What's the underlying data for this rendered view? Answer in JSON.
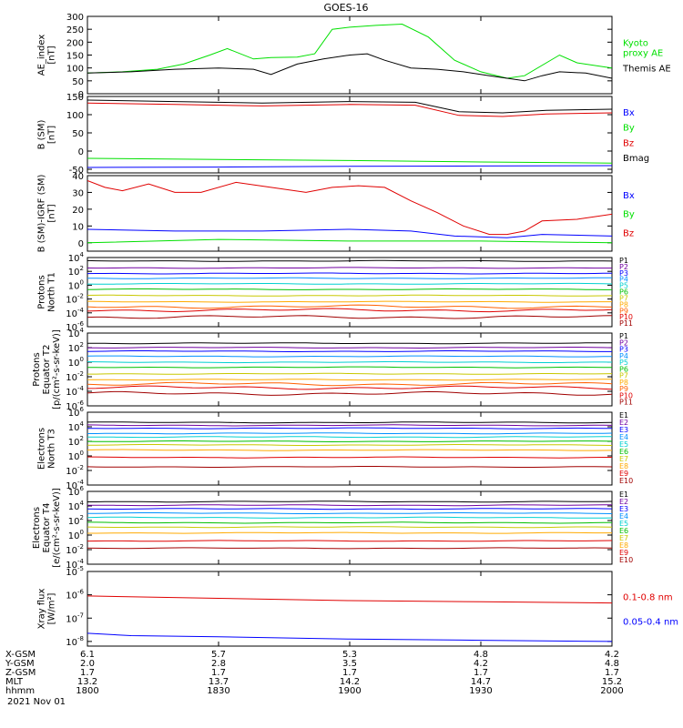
{
  "title": "GOES-16",
  "date": "2021 Nov 01",
  "chart_data": [
    {
      "type": "line",
      "ylabel": [
        "AE_index",
        "[nT]"
      ],
      "ylim": [
        0,
        300
      ],
      "yticks": [
        0,
        50,
        100,
        150,
        200,
        250,
        300
      ],
      "yticklabels": [
        "0",
        "50",
        "100",
        "150",
        "200",
        "250",
        "300"
      ],
      "series": [
        {
          "name": "Kyoto proxy AE",
          "label_lines": [
            "Kyoto",
            "proxy AE"
          ],
          "color": "#00e000",
          "x": [
            0,
            8,
            16,
            22,
            28,
            32,
            38,
            42,
            48,
            52,
            56,
            60,
            66,
            72,
            78,
            84,
            90,
            96,
            100,
            108,
            112,
            120
          ],
          "values": [
            80,
            85,
            95,
            115,
            150,
            175,
            135,
            140,
            142,
            155,
            250,
            258,
            265,
            270,
            220,
            130,
            85,
            60,
            70,
            150,
            120,
            100
          ]
        },
        {
          "name": "Themis AE",
          "label_lines": [
            "Themis AE"
          ],
          "color": "#000000",
          "x": [
            0,
            10,
            20,
            30,
            38,
            42,
            48,
            54,
            60,
            64,
            68,
            74,
            80,
            86,
            92,
            96,
            100,
            104,
            108,
            114,
            120
          ],
          "values": [
            80,
            85,
            95,
            100,
            95,
            75,
            115,
            135,
            150,
            155,
            130,
            100,
            95,
            85,
            70,
            60,
            50,
            70,
            85,
            80,
            60
          ]
        }
      ]
    },
    {
      "type": "line",
      "ylabel": [
        "B (SM)",
        "[nT]"
      ],
      "ylim": [
        -60,
        150
      ],
      "yticks": [
        -50,
        0,
        50,
        100,
        150
      ],
      "yticklabels": [
        "-50",
        "0",
        "50",
        "100",
        "150"
      ],
      "series": [
        {
          "name": "Bx",
          "color": "#0000ff",
          "x": [
            0,
            30,
            60,
            90,
            120
          ],
          "values": [
            -45,
            -44,
            -42,
            -41,
            -40
          ]
        },
        {
          "name": "By",
          "color": "#00e000",
          "x": [
            0,
            30,
            60,
            90,
            120
          ],
          "values": [
            -20,
            -23,
            -26,
            -30,
            -33
          ]
        },
        {
          "name": "Bz",
          "color": "#e00000",
          "x": [
            0,
            20,
            40,
            60,
            75,
            85,
            95,
            105,
            120
          ],
          "values": [
            132,
            128,
            124,
            128,
            126,
            98,
            95,
            102,
            105
          ]
        },
        {
          "name": "Bmag",
          "color": "#000000",
          "x": [
            0,
            20,
            40,
            60,
            75,
            85,
            95,
            105,
            120
          ],
          "values": [
            140,
            136,
            132,
            136,
            134,
            108,
            105,
            112,
            115
          ]
        }
      ]
    },
    {
      "type": "line",
      "ylabel": [
        "B (SM)-IGRF (SM)",
        "[nT]"
      ],
      "ylim": [
        -5,
        40
      ],
      "yticks": [
        0,
        10,
        20,
        30,
        40
      ],
      "yticklabels": [
        "0",
        "10",
        "20",
        "30",
        "40"
      ],
      "series": [
        {
          "name": "Bx",
          "color": "#0000ff",
          "x": [
            0,
            20,
            40,
            60,
            74,
            84,
            96,
            104,
            120
          ],
          "values": [
            8,
            7,
            7,
            8,
            7,
            4,
            3,
            5,
            4
          ]
        },
        {
          "name": "By",
          "color": "#00e000",
          "x": [
            0,
            30,
            60,
            90,
            120
          ],
          "values": [
            0,
            2,
            1,
            1,
            0
          ]
        },
        {
          "name": "Bz",
          "color": "#e00000",
          "x": [
            0,
            4,
            8,
            14,
            20,
            26,
            34,
            42,
            50,
            56,
            62,
            68,
            74,
            80,
            86,
            92,
            96,
            100,
            104,
            112,
            120
          ],
          "values": [
            37,
            33,
            31,
            35,
            30,
            30,
            36,
            33,
            30,
            33,
            34,
            33,
            25,
            18,
            10,
            5,
            5,
            7,
            13,
            14,
            17
          ]
        }
      ]
    },
    {
      "type": "line",
      "log": true,
      "ylabel": [
        "Protons",
        "North T1"
      ],
      "ylim_exp": [
        -6,
        4
      ],
      "tick_exps": [
        -6,
        -4,
        -2,
        0,
        2,
        4
      ],
      "series": [
        {
          "name": "P1",
          "color": "#000000",
          "exp": 3.5
        },
        {
          "name": "P2",
          "color": "#7000a0",
          "exp": 2.5
        },
        {
          "name": "P3",
          "color": "#0000ff",
          "exp": 1.7
        },
        {
          "name": "P4",
          "color": "#0090ff",
          "exp": 1.0
        },
        {
          "name": "P5",
          "color": "#00d0d0",
          "exp": 0.2
        },
        {
          "name": "P6",
          "color": "#00c000",
          "exp": -0.6
        },
        {
          "name": "P7",
          "color": "#c8c800",
          "exp": -1.5
        },
        {
          "name": "P8",
          "color": "#ffaa00",
          "exp": -2.4
        },
        {
          "name": "P9",
          "color": "#ff6000",
          "exp": -3.1
        },
        {
          "name": "P10",
          "color": "#e00000",
          "exp": -3.6
        },
        {
          "name": "P11",
          "color": "#a00000",
          "exp": -4.6
        }
      ]
    },
    {
      "type": "line",
      "log": true,
      "ylabel": [
        "Protons",
        "Equator T2",
        "[p/(cm²-s-sr-keV)]"
      ],
      "ylim_exp": [
        -6,
        4
      ],
      "tick_exps": [
        -6,
        -4,
        -2,
        0,
        2,
        4
      ],
      "series": [
        {
          "name": "P1",
          "color": "#000000",
          "exp": 2.6
        },
        {
          "name": "P2",
          "color": "#7000a0",
          "exp": 2.0
        },
        {
          "name": "P3",
          "color": "#0000ff",
          "exp": 1.5
        },
        {
          "name": "P4",
          "color": "#0090ff",
          "exp": 0.8
        },
        {
          "name": "P5",
          "color": "#00d0d0",
          "exp": 0.0
        },
        {
          "name": "P6",
          "color": "#00c000",
          "exp": -0.7
        },
        {
          "name": "P7",
          "color": "#c8c800",
          "exp": -1.6
        },
        {
          "name": "P8",
          "color": "#ffaa00",
          "exp": -2.4
        },
        {
          "name": "P9",
          "color": "#ff6000",
          "exp": -3.0
        },
        {
          "name": "P10",
          "color": "#e00000",
          "exp": -3.5
        },
        {
          "name": "P11",
          "color": "#a00000",
          "exp": -4.3
        }
      ]
    },
    {
      "type": "line",
      "log": true,
      "ylabel": [
        "Electrons",
        "North T3"
      ],
      "ylim_exp": [
        -4,
        6
      ],
      "tick_exps": [
        -4,
        -2,
        0,
        2,
        4,
        6
      ],
      "series": [
        {
          "name": "E1",
          "color": "#000000",
          "exp": 4.6
        },
        {
          "name": "E2",
          "color": "#7000a0",
          "exp": 4.2
        },
        {
          "name": "E3",
          "color": "#0000ff",
          "exp": 3.8
        },
        {
          "name": "E4",
          "color": "#0090ff",
          "exp": 3.1
        },
        {
          "name": "E5",
          "color": "#00d0d0",
          "exp": 2.6
        },
        {
          "name": "E6",
          "color": "#00c000",
          "exp": 2.0
        },
        {
          "name": "E7",
          "color": "#c8c800",
          "exp": 1.5
        },
        {
          "name": "E8",
          "color": "#ffaa00",
          "exp": 0.8
        },
        {
          "name": "E9",
          "color": "#e00000",
          "exp": -0.2
        },
        {
          "name": "E10",
          "color": "#a00000",
          "exp": -1.5
        }
      ]
    },
    {
      "type": "line",
      "log": true,
      "ylabel": [
        "Electrons",
        "Equator T4",
        "[e/(cm²-s-sr-keV)]"
      ],
      "ylim_exp": [
        -4,
        6
      ],
      "tick_exps": [
        -4,
        -2,
        0,
        2,
        4,
        6
      ],
      "series": [
        {
          "name": "E1",
          "color": "#000000",
          "exp": 4.6
        },
        {
          "name": "E2",
          "color": "#7000a0",
          "exp": 4.1
        },
        {
          "name": "E3",
          "color": "#0000ff",
          "exp": 3.6
        },
        {
          "name": "E4",
          "color": "#0090ff",
          "exp": 3.0
        },
        {
          "name": "E5",
          "color": "#00d0d0",
          "exp": 2.4
        },
        {
          "name": "E6",
          "color": "#00c000",
          "exp": 1.7
        },
        {
          "name": "E7",
          "color": "#c8c800",
          "exp": 1.1
        },
        {
          "name": "E8",
          "color": "#ffaa00",
          "exp": 0.3
        },
        {
          "name": "E9",
          "color": "#e00000",
          "exp": -0.8
        },
        {
          "name": "E10",
          "color": "#a00000",
          "exp": -1.8
        }
      ]
    },
    {
      "type": "line",
      "log": true,
      "ylabel": [
        "Xray flux",
        "[W/m²]"
      ],
      "ylim_exp": [
        -8.2,
        -5
      ],
      "tick_exps": [
        -8,
        -7,
        -6,
        -5
      ],
      "series": [
        {
          "name": "0.1-0.8 nm",
          "color": "#e00000",
          "x": [
            0,
            30,
            60,
            90,
            120
          ],
          "values_exp": [
            -6.05,
            -6.15,
            -6.25,
            -6.3,
            -6.35
          ]
        },
        {
          "name": "0.05-0.4 nm",
          "color": "#0000ff",
          "x": [
            0,
            10,
            30,
            60,
            90,
            120
          ],
          "values_exp": [
            -7.65,
            -7.75,
            -7.8,
            -7.9,
            -7.95,
            -8.0
          ]
        }
      ]
    }
  ],
  "time_axis": {
    "xlim": [
      0,
      120
    ],
    "tick_x": [
      0,
      30,
      60,
      90,
      120
    ],
    "rows": [
      {
        "label": "X-GSM",
        "values": [
          "6.1",
          "5.7",
          "5.3",
          "4.8",
          "4.2"
        ]
      },
      {
        "label": "Y-GSM",
        "values": [
          "2.0",
          "2.8",
          "3.5",
          "4.2",
          "4.8"
        ]
      },
      {
        "label": "Z-GSM",
        "values": [
          "1.7",
          "1.7",
          "1.7",
          "1.7",
          "1.7"
        ]
      },
      {
        "label": "MLT",
        "values": [
          "13.2",
          "13.7",
          "14.2",
          "14.7",
          "15.2"
        ]
      },
      {
        "label": "hhmm",
        "values": [
          "1800",
          "1830",
          "1900",
          "1930",
          "2000"
        ]
      }
    ]
  }
}
